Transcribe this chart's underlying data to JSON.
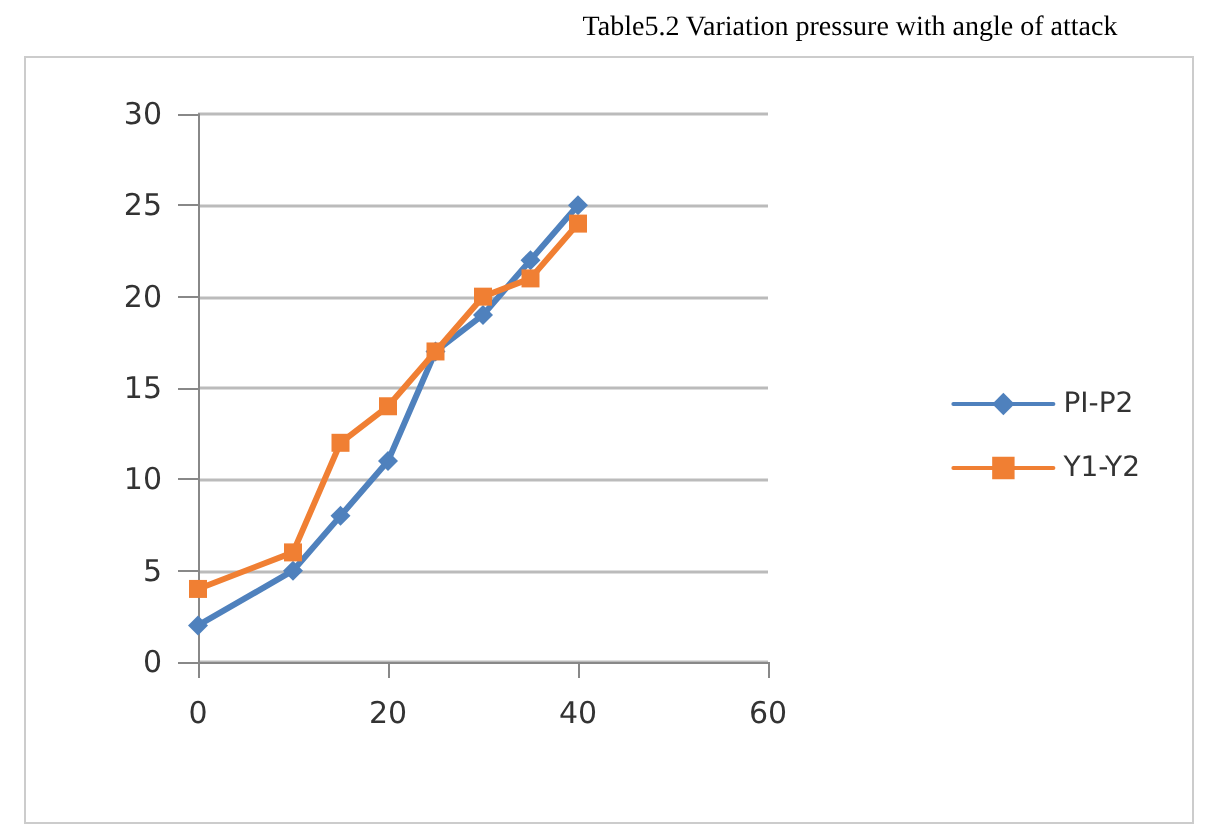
{
  "chart_data": {
    "type": "line",
    "title": "Table5.2 Variation pressure with angle of attack",
    "xlim": [
      0,
      60
    ],
    "xticks": [
      0,
      20,
      40,
      60
    ],
    "ylim": [
      0,
      30
    ],
    "yticks": [
      0,
      5,
      10,
      15,
      20,
      25,
      30
    ],
    "grid": "y",
    "legend": "right",
    "line_style": "solid",
    "series": [
      {
        "name": "PI-P2",
        "color": "#4f81bd",
        "marker": "diamond",
        "x": [
          0,
          10,
          15,
          20,
          25,
          30,
          35,
          40
        ],
        "values": [
          2,
          5,
          8,
          11,
          17,
          19,
          22,
          25
        ]
      },
      {
        "name": "Y1-Y2",
        "color": "#f07f33",
        "marker": "square",
        "x": [
          0,
          10,
          15,
          20,
          25,
          30,
          35,
          40
        ],
        "values": [
          4,
          6,
          12,
          14,
          17,
          20,
          21,
          24
        ]
      }
    ]
  }
}
